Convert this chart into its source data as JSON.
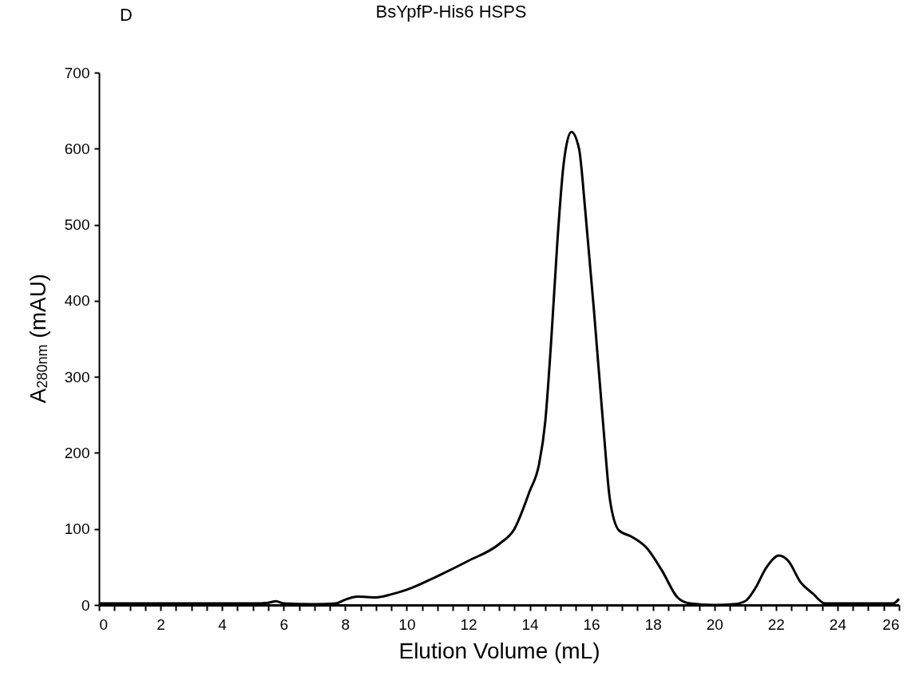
{
  "chart_data": {
    "type": "line",
    "title": "BsYpfP-His6 HSPS",
    "xlabel": "Elution Volume (mL)",
    "ylabel": "A$_{280nm}$  (mAU)",
    "annotations": [
      "D"
    ],
    "xlim": [
      0,
      26
    ],
    "ylim": [
      0,
      700
    ],
    "xticks": [
      0,
      {
        "value": 0.5,
        "label": null
      },
      {
        "value": 1,
        "label": null
      },
      {
        "value": 1.5,
        "label": null
      },
      2,
      {
        "value": 2.5,
        "label": null
      },
      {
        "value": 3,
        "label": null
      },
      {
        "value": 3.5,
        "label": null
      },
      4,
      {
        "value": 4.5,
        "label": null
      },
      {
        "value": 5,
        "label": null
      },
      {
        "value": 5.5,
        "label": null
      },
      6,
      {
        "value": 6.5,
        "label": null
      },
      {
        "value": 7,
        "label": null
      },
      {
        "value": 7.5,
        "label": null
      },
      8,
      {
        "value": 8.5,
        "label": null
      },
      {
        "value": 9,
        "label": null
      },
      {
        "value": 9.5,
        "label": null
      },
      10,
      {
        "value": 10.5,
        "label": null
      },
      {
        "value": 11,
        "label": null
      },
      {
        "value": 11.5,
        "label": null
      },
      12,
      {
        "value": 12.5,
        "label": null
      },
      {
        "value": 13,
        "label": null
      },
      {
        "value": 13.5,
        "label": null
      },
      14,
      {
        "value": 14.5,
        "label": null
      },
      {
        "value": 15,
        "label": null
      },
      {
        "value": 15.5,
        "label": null
      },
      16,
      {
        "value": 16.5,
        "label": null
      },
      {
        "value": 17,
        "label": null
      },
      {
        "value": 17.5,
        "label": null
      },
      18,
      {
        "value": 18.5,
        "label": null
      },
      {
        "value": 19,
        "label": null
      },
      {
        "value": 19.5,
        "label": null
      },
      20,
      {
        "value": 20.5,
        "label": null
      },
      {
        "value": 21,
        "label": null
      },
      {
        "value": 21.5,
        "label": null
      },
      22,
      {
        "value": 22.5,
        "label": null
      },
      {
        "value": 23,
        "label": null
      },
      {
        "value": 23.5,
        "label": null
      },
      24,
      {
        "value": 24.5,
        "label": null
      },
      {
        "value": 25,
        "label": null
      },
      {
        "value": 25.5,
        "label": null
      },
      26
    ],
    "yticks": [
      0,
      100,
      200,
      300,
      400,
      500,
      600,
      700
    ],
    "marker": "none",
    "line_style": "solid",
    "series": [
      {
        "color": "#000000",
        "x": [
          0,
          5,
          5.5,
          5.75,
          6,
          7,
          7.7,
          8,
          8.4,
          9,
          9.5,
          10,
          11,
          12,
          13,
          13.5,
          14,
          14.3,
          14.5,
          14.7,
          14.9,
          15.1,
          15.35,
          15.6,
          15.8,
          16.1,
          16.4,
          16.6,
          16.9,
          17.3,
          17.8,
          18.3,
          18.8,
          19.2,
          20,
          20.6,
          21,
          21.3,
          21.7,
          22.1,
          22.4,
          22.8,
          23.2,
          23.6,
          24,
          25.8,
          26
        ],
        "values": [
          2,
          2,
          3,
          5,
          2,
          1,
          2,
          7,
          11,
          10,
          14,
          20,
          38,
          58,
          80,
          100,
          150,
          185,
          240,
          350,
          480,
          580,
          622,
          600,
          520,
          380,
          230,
          140,
          98,
          90,
          75,
          45,
          10,
          2,
          0,
          1,
          5,
          20,
          50,
          65,
          58,
          30,
          15,
          2,
          2,
          2,
          8
        ]
      }
    ]
  }
}
